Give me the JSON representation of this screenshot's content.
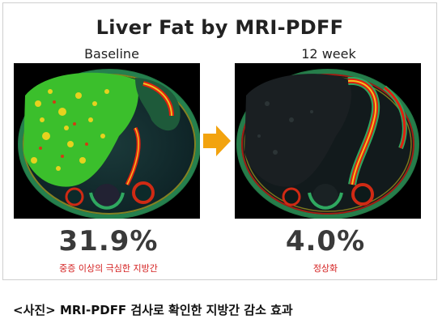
{
  "figure": {
    "title": "Liver Fat by MRI-PDFF",
    "baseline": {
      "label": "Baseline",
      "value": "31.9%",
      "note": "중증 이상의 극심한 지방간"
    },
    "week12": {
      "label": "12 week",
      "value": "4.0%",
      "note": "정상화"
    },
    "colors": {
      "note": "#d42020",
      "arrow": "#f2a30f",
      "fat_high": "#e02010",
      "fat_mid": "#f0c020",
      "fat_low": "#3ac030"
    }
  },
  "caption": "<사진> MRI-PDFF 검사로 확인한 지방간 감소 효과"
}
